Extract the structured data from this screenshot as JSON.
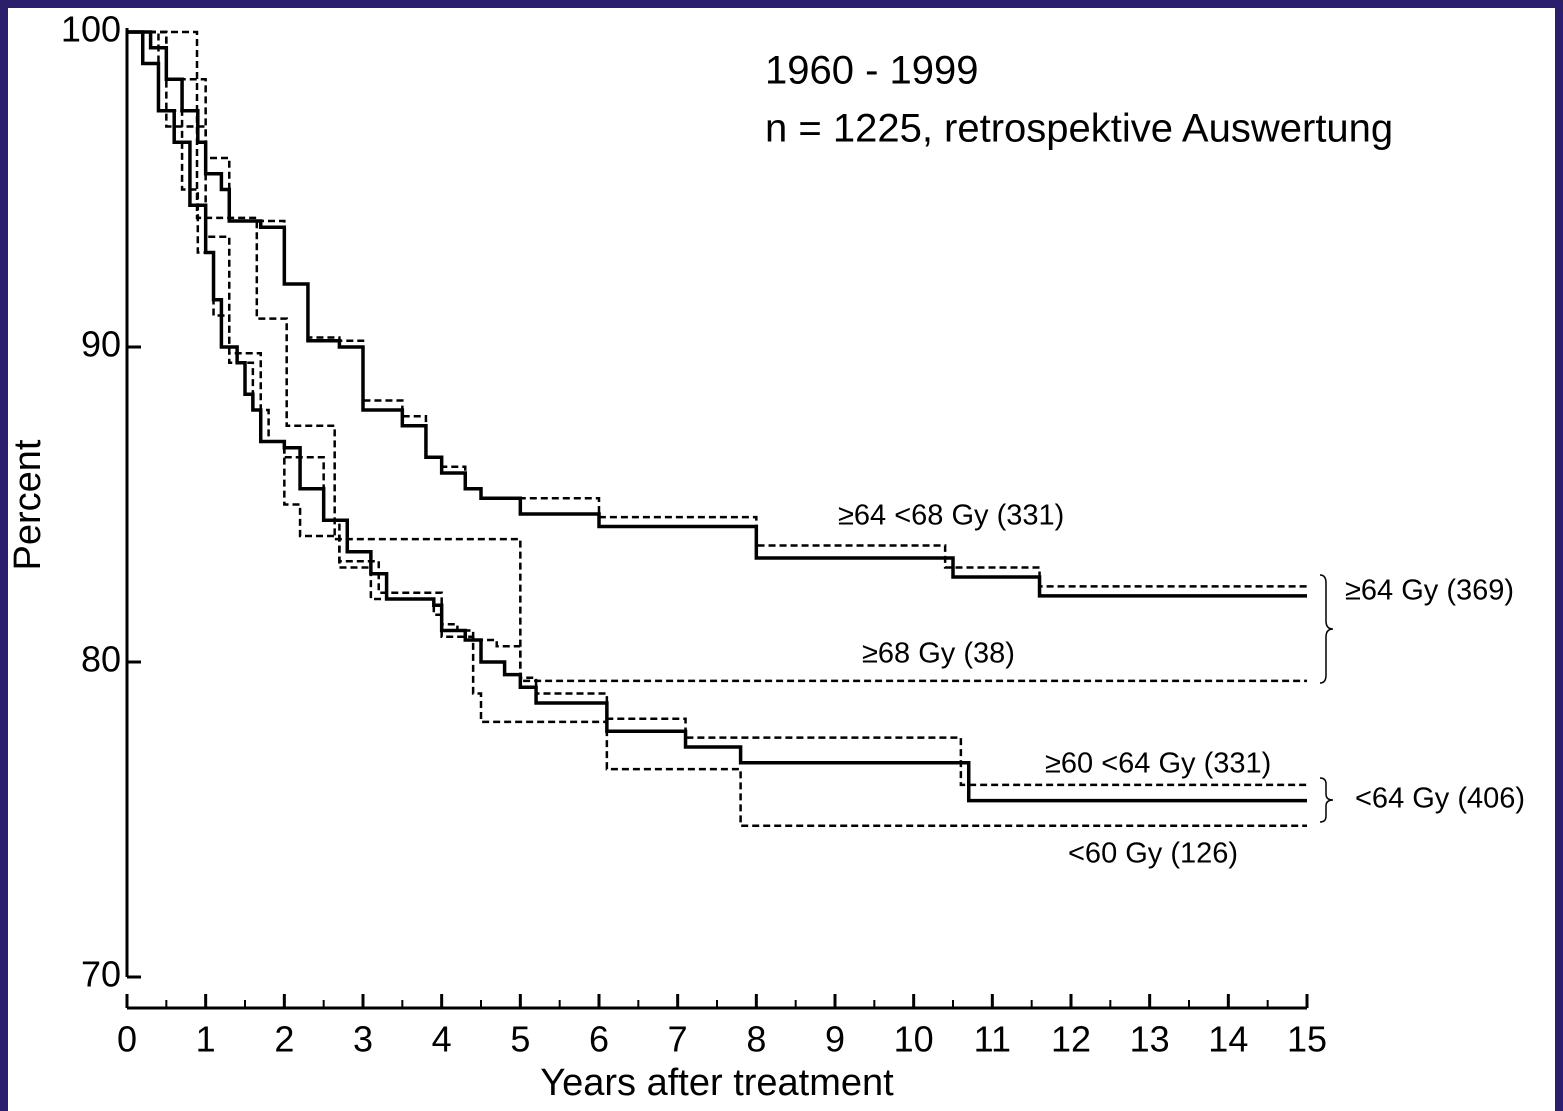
{
  "chart_data": {
    "type": "line",
    "step": true,
    "notes": [
      "1960 - 1999",
      "n = 1225, retrospektive Auswertung"
    ],
    "xlabel": "Years after treatment",
    "ylabel": "Percent",
    "xlim": [
      0,
      15
    ],
    "ylim": [
      70,
      100
    ],
    "xticks": [
      0,
      1,
      2,
      3,
      4,
      5,
      6,
      7,
      8,
      9,
      10,
      11,
      12,
      13,
      14,
      15
    ],
    "xminorticks": [
      0.5,
      1.5,
      2.5,
      3.5,
      4.5,
      5.5,
      6.5,
      7.5,
      8.5,
      9.5,
      10.5,
      11.5,
      12.5,
      13.5,
      14.5
    ],
    "yticks": [
      70,
      80,
      90,
      100
    ],
    "grid": false,
    "series": [
      {
        "name": "≥64 <68 Gy (331)",
        "color": "#000000",
        "dashed": false,
        "x": [
          0,
          0.3,
          0.5,
          0.7,
          0.9,
          1,
          1.2,
          1.3,
          1.7,
          2,
          2.3,
          2.7,
          3,
          3.5,
          3.8,
          4,
          4.3,
          4.5,
          5,
          6,
          8,
          10.5,
          11.6,
          15
        ],
        "values": [
          100,
          99.5,
          98.5,
          97.5,
          96.5,
          95.5,
          95,
          94,
          93.8,
          92,
          90.2,
          90,
          88,
          87.5,
          86.5,
          86,
          85.5,
          85.2,
          84.7,
          84.3,
          83.3,
          82.7,
          82.1,
          82.1
        ]
      },
      {
        "name": "≥68 Gy (38)",
        "color": "#000000",
        "dashed": true,
        "x": [
          0,
          0.89,
          1.65,
          2.03,
          2.64,
          5,
          15
        ],
        "values": [
          100,
          94.1,
          90.9,
          87.5,
          83.9,
          79.4,
          79.4
        ]
      },
      {
        "name": "≥60 <64 Gy (331)",
        "color": "#000000",
        "dashed": false,
        "x": [
          0,
          0.2,
          0.4,
          0.6,
          0.8,
          1,
          1.1,
          1.2,
          1.4,
          1.5,
          1.6,
          1.7,
          2,
          2.2,
          2.5,
          2.8,
          3.1,
          3.3,
          3.9,
          4,
          4.3,
          4.5,
          4.8,
          5,
          5.2,
          6.1,
          7.1,
          7.8,
          10.7,
          15
        ],
        "values": [
          100,
          99,
          97.5,
          96.5,
          94.5,
          93,
          91.5,
          90,
          89.5,
          88.5,
          88,
          87,
          86.8,
          85.5,
          84.5,
          83.5,
          82.8,
          82,
          81.8,
          81,
          80.7,
          80,
          79.6,
          79.2,
          78.7,
          77.8,
          77.3,
          76.8,
          75.6,
          75.6
        ]
      },
      {
        "name": "<60 Gy (126)",
        "color": "#000000",
        "dashed": true,
        "x": [
          0,
          0.4,
          0.7,
          0.9,
          1.1,
          1.3,
          1.6,
          1.8,
          2,
          2.2,
          2.7,
          3.1,
          3.9,
          4,
          4.4,
          4.5,
          6.1,
          7.8,
          15
        ],
        "values": [
          100,
          97.5,
          95,
          93,
          91,
          89.5,
          88,
          87,
          85,
          84,
          83,
          82,
          81.5,
          80.8,
          79,
          78.1,
          76.6,
          74.8,
          74.8
        ]
      },
      {
        "color": "#000000",
        "dashed": true,
        "x": [
          0,
          0.5,
          1,
          1.3,
          1.7,
          2,
          2.3,
          2.7,
          3,
          3.5,
          3.8,
          4,
          4.3,
          4.5,
          6,
          8,
          10.4,
          11.6,
          15
        ],
        "values": [
          100,
          98.5,
          96,
          94,
          94,
          92,
          90.3,
          90.2,
          88.3,
          87.8,
          86.5,
          86.2,
          85.5,
          85.2,
          84.6,
          83.7,
          83,
          82.4,
          82.4
        ]
      },
      {
        "color": "#000000",
        "dashed": true,
        "x": [
          0,
          0.5,
          1,
          1.3,
          1.7,
          2,
          2.5,
          2.7,
          3.2,
          4,
          4.2,
          4.4,
          4.7,
          5,
          5.2,
          6.1,
          7.1,
          10.6,
          15
        ],
        "values": [
          100,
          97,
          93.5,
          89.8,
          87,
          86.5,
          84.5,
          83.2,
          82.2,
          81.2,
          81,
          80.7,
          80.5,
          79.5,
          79,
          78.2,
          77.6,
          76.1,
          76.1
        ]
      }
    ],
    "bracket_labels": [
      "≥64 Gy (369)",
      "<64 Gy (406)"
    ]
  }
}
